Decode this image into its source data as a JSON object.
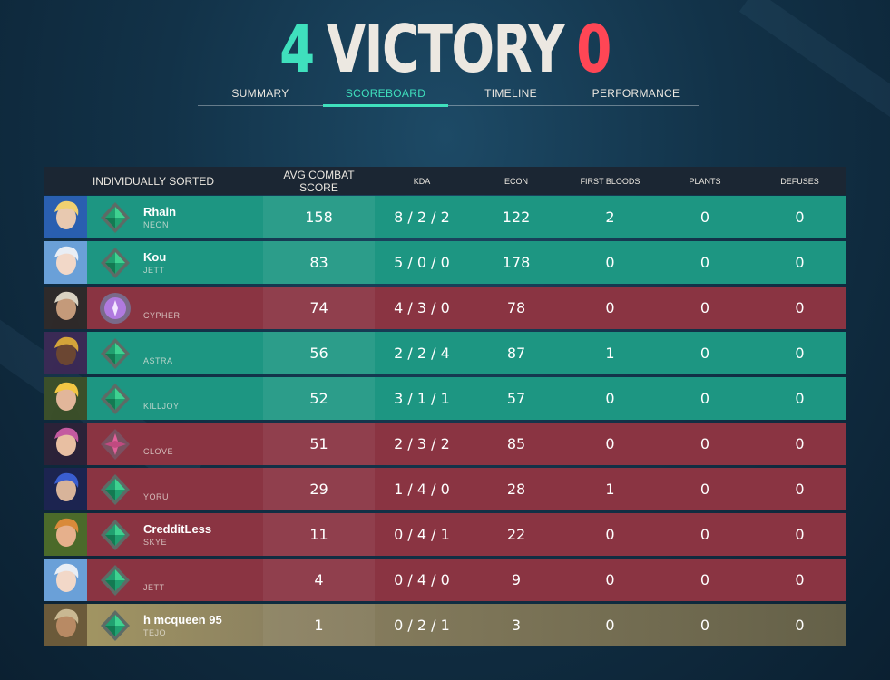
{
  "match": {
    "team_score": "4",
    "result": "VICTORY",
    "enemy_score": "0"
  },
  "tabs": [
    {
      "label": "SUMMARY",
      "active": false
    },
    {
      "label": "SCOREBOARD",
      "active": true
    },
    {
      "label": "TIMELINE",
      "active": false
    },
    {
      "label": "PERFORMANCE",
      "active": false
    }
  ],
  "columns": {
    "player": "INDIVIDUALLY SORTED",
    "acs": "AVG COMBAT SCORE",
    "kda": "KDA",
    "econ": "ECON",
    "first_bloods": "FIRST BLOODS",
    "plants": "PLANTS",
    "defuses": "DEFUSES"
  },
  "colors": {
    "ally": "#1d9682",
    "enemy": "#8a3442",
    "self": "#a69963",
    "accent": "#3fe0bd",
    "enemy_accent": "#ff4655"
  },
  "players": [
    {
      "name": "Rhain",
      "agent": "NEON",
      "team": "ally",
      "rank_icon": "diamond-rank-icon",
      "acs": "158",
      "kda": "8 / 2 / 2",
      "econ": "122",
      "first_bloods": "2",
      "plants": "0",
      "defuses": "0"
    },
    {
      "name": "Kou",
      "agent": "JETT",
      "team": "ally",
      "rank_icon": "diamond-rank-icon",
      "acs": "83",
      "kda": "5 / 0 / 0",
      "econ": "178",
      "first_bloods": "0",
      "plants": "0",
      "defuses": "0"
    },
    {
      "name": "",
      "agent": "CYPHER",
      "team": "enemy",
      "rank_icon": "ascendant-rank-icon",
      "acs": "74",
      "kda": "4 / 3 / 0",
      "econ": "78",
      "first_bloods": "0",
      "plants": "0",
      "defuses": "0"
    },
    {
      "name": "",
      "agent": "ASTRA",
      "team": "ally",
      "rank_icon": "diamond-rank-icon",
      "acs": "56",
      "kda": "2 / 2 / 4",
      "econ": "87",
      "first_bloods": "1",
      "plants": "0",
      "defuses": "0"
    },
    {
      "name": "",
      "agent": "KILLJOY",
      "team": "ally",
      "rank_icon": "diamond-rank-icon",
      "acs": "52",
      "kda": "3 / 1 / 1",
      "econ": "57",
      "first_bloods": "0",
      "plants": "0",
      "defuses": "0"
    },
    {
      "name": "",
      "agent": "CLOVE",
      "team": "enemy",
      "rank_icon": "immortal-rank-icon",
      "acs": "51",
      "kda": "2 / 3 / 2",
      "econ": "85",
      "first_bloods": "0",
      "plants": "0",
      "defuses": "0"
    },
    {
      "name": "",
      "agent": "YORU",
      "team": "enemy",
      "rank_icon": "diamond-rank-icon",
      "acs": "29",
      "kda": "1 / 4 / 0",
      "econ": "28",
      "first_bloods": "1",
      "plants": "0",
      "defuses": "0"
    },
    {
      "name": "CredditLess",
      "agent": "SKYE",
      "team": "enemy",
      "rank_icon": "diamond-rank-icon",
      "acs": "11",
      "kda": "0 / 4 / 1",
      "econ": "22",
      "first_bloods": "0",
      "plants": "0",
      "defuses": "0"
    },
    {
      "name": "",
      "agent": "JETT",
      "team": "enemy",
      "rank_icon": "diamond-rank-icon",
      "acs": "4",
      "kda": "0 / 4 / 0",
      "econ": "9",
      "first_bloods": "0",
      "plants": "0",
      "defuses": "0"
    },
    {
      "name": "h mcqueen 95",
      "agent": "TEJO",
      "team": "self",
      "rank_icon": "diamond-rank-icon",
      "acs": "1",
      "kda": "0 / 2 / 1",
      "econ": "3",
      "first_bloods": "0",
      "plants": "0",
      "defuses": "0"
    }
  ]
}
